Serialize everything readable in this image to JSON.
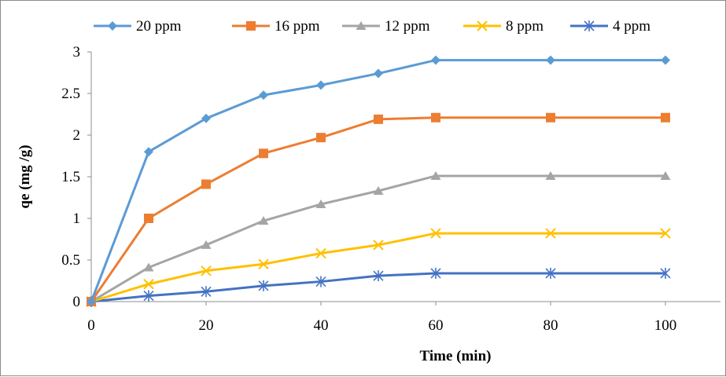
{
  "chart_data": {
    "type": "line",
    "title": "",
    "xlabel": "Time (min)",
    "ylabel": "qe (mg /g)",
    "xlim": [
      0,
      100
    ],
    "ylim": [
      0,
      3
    ],
    "x_ticks": [
      0,
      20,
      40,
      60,
      80,
      100
    ],
    "x_tick_labels": [
      "0",
      "20",
      "40",
      "60",
      "80",
      "100"
    ],
    "y_ticks": [
      0,
      0.5,
      1,
      1.5,
      2,
      2.5,
      3
    ],
    "y_tick_labels": [
      "0",
      "0.5",
      "1",
      "1.5",
      "2",
      "2.5",
      "3"
    ],
    "grid": false,
    "legend_position": "top",
    "x": [
      0,
      10,
      20,
      30,
      40,
      50,
      60,
      80,
      100
    ],
    "series": [
      {
        "name": "20 ppm",
        "color": "#5B9BD5",
        "marker": "diamond",
        "values": [
          0,
          1.8,
          2.2,
          2.48,
          2.6,
          2.74,
          2.9,
          2.9,
          2.9
        ]
      },
      {
        "name": "16 ppm",
        "color": "#ED7D31",
        "marker": "square",
        "values": [
          0,
          1.0,
          1.41,
          1.78,
          1.97,
          2.19,
          2.21,
          2.21,
          2.21
        ]
      },
      {
        "name": "12 ppm",
        "color": "#A5A5A5",
        "marker": "triangle",
        "values": [
          0,
          0.41,
          0.68,
          0.97,
          1.17,
          1.33,
          1.51,
          1.51,
          1.51
        ]
      },
      {
        "name": "8 ppm",
        "color": "#FFC000",
        "marker": "x",
        "values": [
          0,
          0.21,
          0.37,
          0.45,
          0.58,
          0.68,
          0.82,
          0.82,
          0.82
        ]
      },
      {
        "name": "4 ppm",
        "color": "#4472C4",
        "marker": "star",
        "values": [
          0,
          0.07,
          0.12,
          0.19,
          0.24,
          0.31,
          0.34,
          0.34,
          0.34
        ]
      }
    ]
  }
}
